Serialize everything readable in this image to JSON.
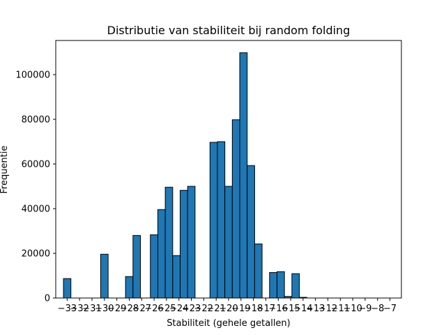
{
  "chart_data": {
    "type": "bar",
    "title": "Distributie van stabiliteit bij random folding",
    "xlabel": "Stabiliteit (gehele getallen)",
    "ylabel": "Frequentie",
    "categories": [
      -33,
      -32,
      -31,
      -30,
      -29,
      -28,
      -27,
      -26,
      -25,
      -24,
      -23,
      -22,
      -21,
      -20,
      -19,
      -18,
      -17,
      -16,
      -15,
      -14,
      -13,
      -12,
      -11,
      -10,
      -9,
      -8,
      -7
    ],
    "tick_labels": [
      "−33",
      "−32",
      "−31",
      "−30",
      "−29",
      "−28",
      "−27",
      "−26",
      "−25",
      "−24",
      "−23",
      "−22",
      "−21",
      "−20",
      "−19",
      "−18",
      "−17",
      "−16",
      "−15",
      "−14",
      "−13",
      "−12",
      "−11",
      "−10",
      "−9",
      "−8",
      "−7"
    ],
    "bars": [
      {
        "x": -33,
        "value": 8700
      },
      {
        "x": -32,
        "value": 0
      },
      {
        "x": -31,
        "value": 0
      },
      {
        "x": -30,
        "value": 19600
      },
      {
        "x": -29,
        "value": 0
      },
      {
        "x": -28,
        "value": 9600
      },
      {
        "x": -27.4,
        "value": 28000
      },
      {
        "x": -26,
        "value": 28300
      },
      {
        "x": -25.4,
        "value": 39600
      },
      {
        "x": -24.8,
        "value": 49600
      },
      {
        "x": -24.2,
        "value": 19000
      },
      {
        "x": -23.6,
        "value": 48200
      },
      {
        "x": -23,
        "value": 50000
      },
      {
        "x": -22.4,
        "value": 0
      },
      {
        "x": -21.2,
        "value": 69700
      },
      {
        "x": -20.6,
        "value": 70000
      },
      {
        "x": -20,
        "value": 50000
      },
      {
        "x": -19.4,
        "value": 79800
      },
      {
        "x": -18.8,
        "value": 109800
      },
      {
        "x": -18.2,
        "value": 59300
      },
      {
        "x": -17.6,
        "value": 24200
      },
      {
        "x": -16.4,
        "value": 11400
      },
      {
        "x": -15.8,
        "value": 11800
      },
      {
        "x": -15.2,
        "value": 700
      },
      {
        "x": -14.6,
        "value": 10900
      },
      {
        "x": -14,
        "value": 300
      }
    ],
    "bar_width": 0.6,
    "xlim": [
      -33.92,
      -6.08
    ],
    "ylim": [
      0,
      115300
    ],
    "yticks": [
      0,
      20000,
      40000,
      60000,
      80000,
      100000
    ],
    "bar_color": "#1f77b4",
    "edge_color": "#000000",
    "grid": false,
    "legend": "none"
  }
}
